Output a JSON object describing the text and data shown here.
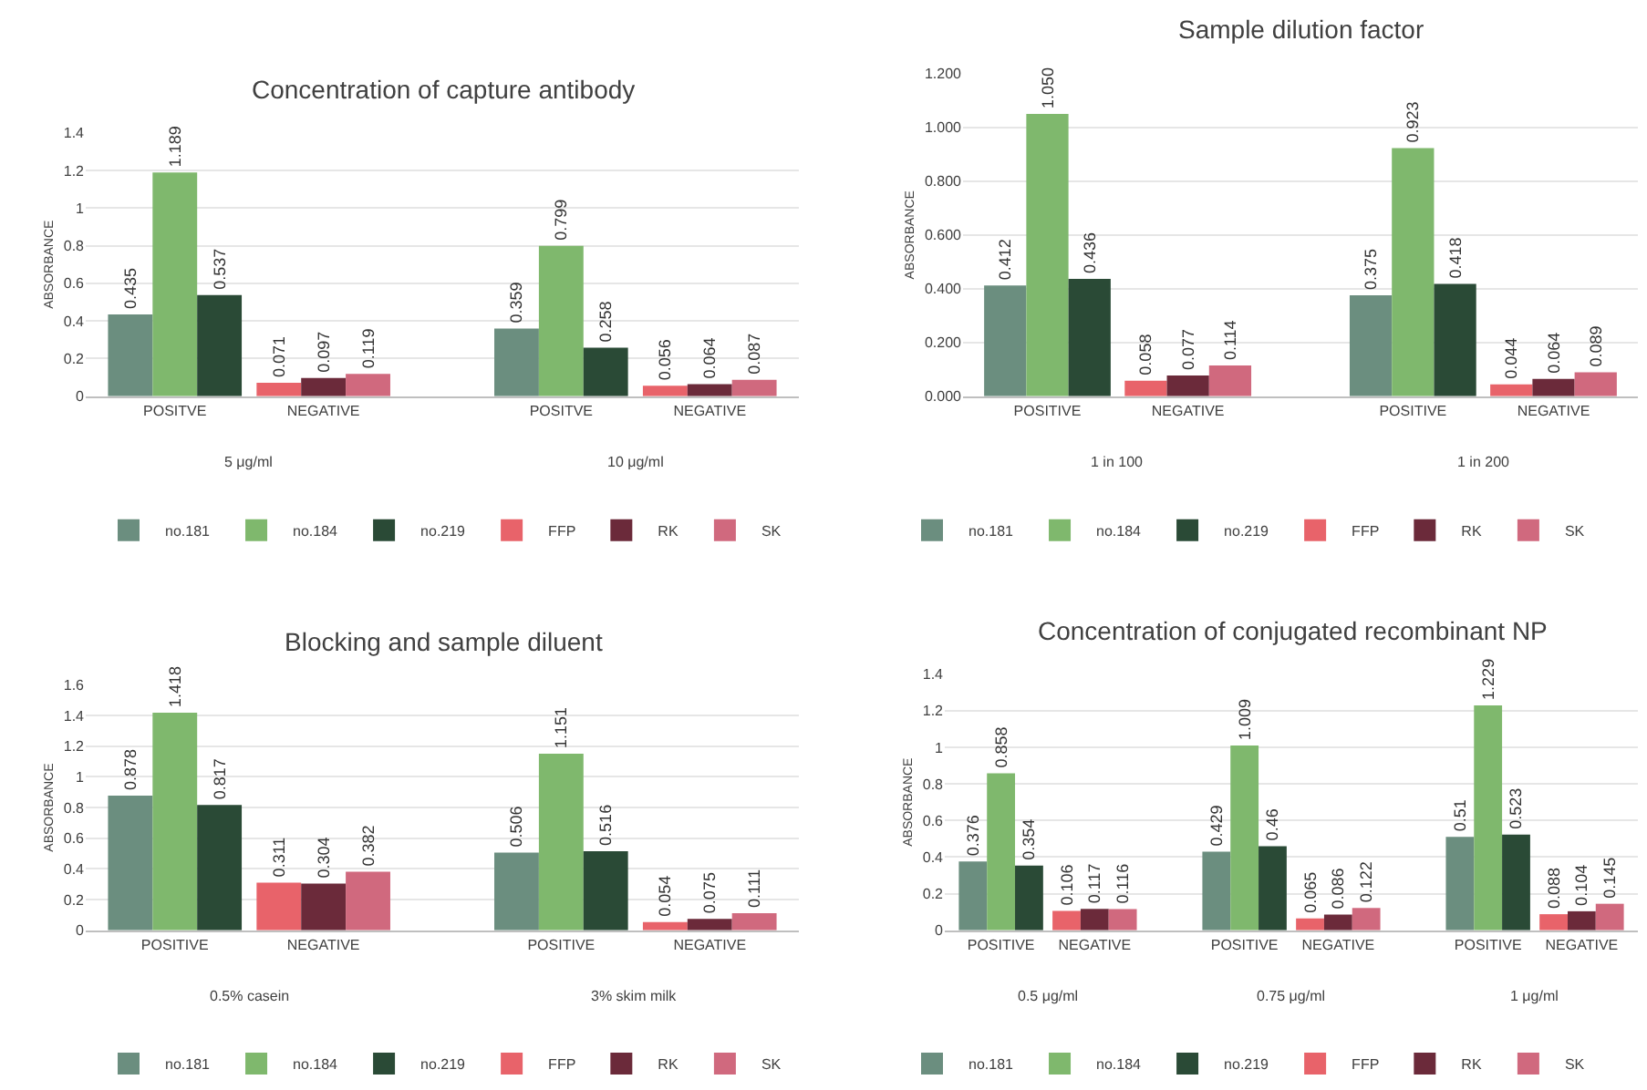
{
  "chart_data": [
    {
      "type": "bar",
      "title": "Concentration of capture antibody",
      "ylabel": "ABSORBANCE",
      "categories": [
        "POSITVE",
        "NEGATIVE",
        "POSITVE",
        "NEGATIVE"
      ],
      "annotations": [
        "5 μg/ml",
        "10 μg/ml"
      ],
      "ylim": [
        0,
        1.4
      ],
      "yticks": [
        0,
        0.2,
        0.4,
        0.6,
        0.8,
        1,
        1.2,
        1.4
      ],
      "grid": "y",
      "legend": "bottom",
      "series": [
        {
          "name": "no.181",
          "color": "#6b8e7f",
          "values": [
            0.435,
            null,
            0.359,
            null
          ],
          "value_labels": [
            "0.435",
            null,
            "0.359",
            null
          ]
        },
        {
          "name": "no.184",
          "color": "#7fb86d",
          "values": [
            1.189,
            null,
            0.799,
            null
          ],
          "value_labels": [
            "1.189",
            null,
            "0.799",
            null
          ]
        },
        {
          "name": "no.219",
          "color": "#2a4a36",
          "values": [
            0.537,
            null,
            0.258,
            null
          ],
          "value_labels": [
            "0.537",
            null,
            "0.258",
            null
          ]
        },
        {
          "name": "FFP",
          "color": "#e8636a",
          "values": [
            null,
            0.071,
            null,
            0.056
          ],
          "value_labels": [
            null,
            "0.071",
            null,
            "0.056"
          ]
        },
        {
          "name": "RK",
          "color": "#6b2a3a",
          "values": [
            null,
            0.097,
            null,
            0.064
          ],
          "value_labels": [
            null,
            "0.097",
            null,
            "0.064"
          ]
        },
        {
          "name": "SK",
          "color": "#d0697e",
          "values": [
            null,
            0.119,
            null,
            0.087
          ],
          "value_labels": [
            null,
            "0.119",
            null,
            "0.087"
          ]
        }
      ]
    },
    {
      "type": "bar",
      "title": "Sample dilution factor",
      "ylabel": "ABSORBANCE",
      "categories": [
        "POSITIVE",
        "NEGATIVE",
        "POSITIVE",
        "NEGATIVE"
      ],
      "annotations": [
        "1 in 100",
        "1 in 200"
      ],
      "ylim": [
        0,
        1.2
      ],
      "yticks": [
        {
          "value": 0,
          "label": "0.000"
        },
        {
          "value": 0.2,
          "label": "0.200"
        },
        {
          "value": 0.4,
          "label": "0.400"
        },
        {
          "value": 0.6,
          "label": "0.600"
        },
        {
          "value": 0.8,
          "label": "0.800"
        },
        {
          "value": 1,
          "label": "1.000"
        },
        {
          "value": 1.2,
          "label": "1.200"
        }
      ],
      "grid": "y",
      "legend": "bottom",
      "series": [
        {
          "name": "no.181",
          "color": "#6b8e7f",
          "values": [
            0.412,
            null,
            0.375,
            null
          ],
          "value_labels": [
            "0.412",
            null,
            "0.375",
            null
          ]
        },
        {
          "name": "no.184",
          "color": "#7fb86d",
          "values": [
            1.05,
            null,
            0.923,
            null
          ],
          "value_labels": [
            "1.050",
            null,
            "0.923",
            null
          ]
        },
        {
          "name": "no.219",
          "color": "#2a4a36",
          "values": [
            0.436,
            null,
            0.418,
            null
          ],
          "value_labels": [
            "0.436",
            null,
            "0.418",
            null
          ]
        },
        {
          "name": "FFP",
          "color": "#e8636a",
          "values": [
            null,
            0.058,
            null,
            0.044
          ],
          "value_labels": [
            null,
            "0.058",
            null,
            "0.044"
          ]
        },
        {
          "name": "RK",
          "color": "#6b2a3a",
          "values": [
            null,
            0.077,
            null,
            0.064
          ],
          "value_labels": [
            null,
            "0.077",
            null,
            "0.064"
          ]
        },
        {
          "name": "SK",
          "color": "#d0697e",
          "values": [
            null,
            0.114,
            null,
            0.089
          ],
          "value_labels": [
            null,
            "0.114",
            null,
            "0.089"
          ]
        }
      ]
    },
    {
      "type": "bar",
      "title": "Blocking and sample diluent",
      "ylabel": "ABSORBANCE",
      "categories": [
        "POSITIVE",
        "NEGATIVE",
        "POSITIVE",
        "NEGATIVE"
      ],
      "annotations": [
        "0.5% casein",
        "3% skim milk"
      ],
      "ylim": [
        0,
        1.6
      ],
      "yticks": [
        0,
        0.2,
        0.4,
        0.6,
        0.8,
        1,
        1.2,
        1.4,
        1.6
      ],
      "grid": "y",
      "legend": "bottom",
      "series": [
        {
          "name": "no.181",
          "color": "#6b8e7f",
          "values": [
            0.878,
            null,
            0.506,
            null
          ],
          "value_labels": [
            "0.878",
            null,
            "0.506",
            null
          ]
        },
        {
          "name": "no.184",
          "color": "#7fb86d",
          "values": [
            1.418,
            null,
            1.151,
            null
          ],
          "value_labels": [
            "1.418",
            null,
            "1.151",
            null
          ]
        },
        {
          "name": "no.219",
          "color": "#2a4a36",
          "values": [
            0.817,
            null,
            0.516,
            null
          ],
          "value_labels": [
            "0.817",
            null,
            "0.516",
            null
          ]
        },
        {
          "name": "FFP",
          "color": "#e8636a",
          "values": [
            null,
            0.311,
            null,
            0.054
          ],
          "value_labels": [
            null,
            "0.311",
            null,
            "0.054"
          ]
        },
        {
          "name": "RK",
          "color": "#6b2a3a",
          "values": [
            null,
            0.304,
            null,
            0.075
          ],
          "value_labels": [
            null,
            "0.304",
            null,
            "0.075"
          ]
        },
        {
          "name": "SK",
          "color": "#d0697e",
          "values": [
            null,
            0.382,
            null,
            0.111
          ],
          "value_labels": [
            null,
            "0.382",
            null,
            "0.111"
          ]
        }
      ]
    },
    {
      "type": "bar",
      "title": "Concentration of conjugated recombinant NP",
      "ylabel": "ABSORBANCE",
      "categories": [
        "POSITIVE",
        "NEGATIVE",
        "POSITIVE",
        "NEGATIVE",
        "POSITIVE",
        "NEGATIVE"
      ],
      "annotations": [
        "0.5 μg/ml",
        "0.75 μg/ml",
        "1 μg/ml"
      ],
      "ylim": [
        0,
        1.4
      ],
      "yticks": [
        0,
        0.2,
        0.4,
        0.6,
        0.8,
        1,
        1.2,
        1.4
      ],
      "grid": "y",
      "legend": "bottom",
      "series": [
        {
          "name": "no.181",
          "color": "#6b8e7f",
          "values": [
            0.376,
            null,
            0.429,
            null,
            0.51,
            null
          ],
          "value_labels": [
            "0.376",
            null,
            "0.429",
            null,
            "0.51",
            null
          ]
        },
        {
          "name": "no.184",
          "color": "#7fb86d",
          "values": [
            0.858,
            null,
            1.009,
            null,
            1.229,
            null
          ],
          "value_labels": [
            "0.858",
            null,
            "1.009",
            null,
            "1.229",
            null
          ]
        },
        {
          "name": "no.219",
          "color": "#2a4a36",
          "values": [
            0.354,
            null,
            0.46,
            null,
            0.523,
            null
          ],
          "value_labels": [
            "0.354",
            null,
            "0.46",
            null,
            "0.523",
            null
          ]
        },
        {
          "name": "FFP",
          "color": "#e8636a",
          "values": [
            null,
            0.106,
            null,
            0.065,
            null,
            0.088
          ],
          "value_labels": [
            null,
            "0.106",
            null,
            "0.065",
            null,
            "0.088"
          ]
        },
        {
          "name": "RK",
          "color": "#6b2a3a",
          "values": [
            null,
            0.117,
            null,
            0.086,
            null,
            0.104
          ],
          "value_labels": [
            null,
            "0.117",
            null,
            "0.086",
            null,
            "0.104"
          ]
        },
        {
          "name": "SK",
          "color": "#d0697e",
          "values": [
            null,
            0.116,
            null,
            0.122,
            null,
            0.145
          ],
          "value_labels": [
            null,
            "0.116",
            null,
            "0.122",
            null,
            "0.145"
          ]
        }
      ]
    }
  ]
}
